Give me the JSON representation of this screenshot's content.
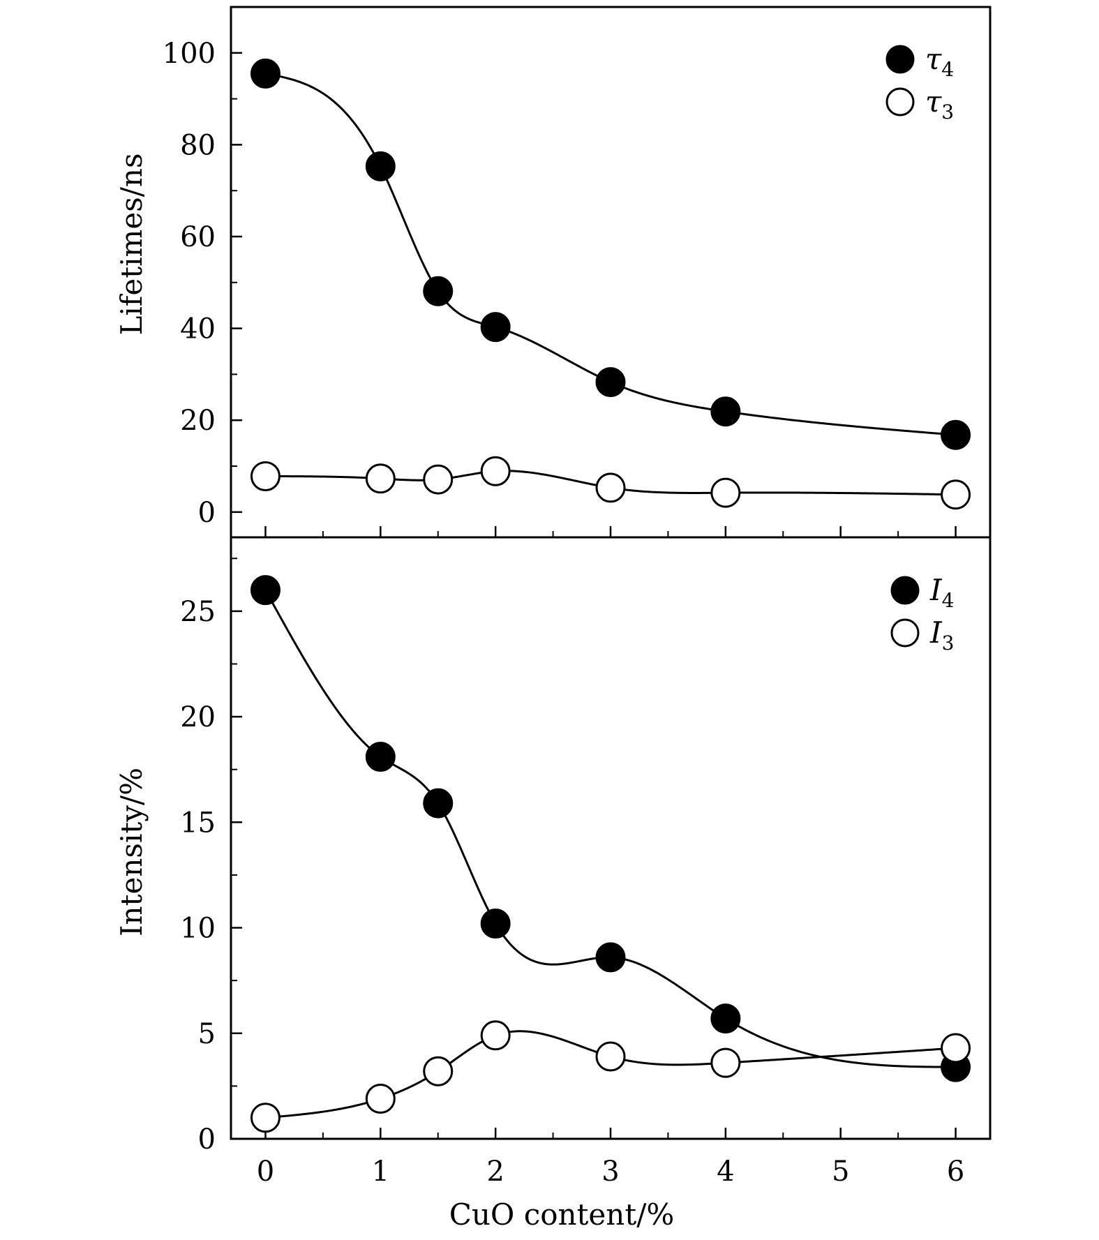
{
  "chart_data": [
    {
      "type": "scatter",
      "panel": "top",
      "ylabel": "Lifetimes/ns",
      "ylim": [
        -5.5,
        110
      ],
      "yticks": [
        0,
        20,
        40,
        60,
        80,
        100
      ],
      "x": [
        0,
        1,
        1.5,
        2,
        3,
        4,
        6
      ],
      "legend_position": "top-right",
      "series": [
        {
          "name": "τ4",
          "label_main": "τ",
          "label_sub": "4",
          "marker": "filled",
          "values": [
            95.5,
            75.3,
            48.1,
            40.3,
            28.3,
            21.9,
            16.8
          ]
        },
        {
          "name": "τ3",
          "label_main": "τ",
          "label_sub": "3",
          "marker": "open",
          "values": [
            7.8,
            7.3,
            7.1,
            8.9,
            5.3,
            4.2,
            3.8
          ]
        }
      ]
    },
    {
      "type": "scatter",
      "panel": "bottom",
      "xlabel": "CuO content/%",
      "ylabel": "Intensity/%",
      "xlim": [
        -0.3,
        6.3
      ],
      "xticks": [
        0,
        1,
        2,
        3,
        4,
        5,
        6
      ],
      "ylim": [
        0,
        28.5
      ],
      "yticks": [
        0,
        5,
        10,
        15,
        20,
        25
      ],
      "x": [
        0,
        1,
        1.5,
        2,
        3,
        4,
        6
      ],
      "legend_position": "top-right",
      "series": [
        {
          "name": "I4",
          "label_main": "I",
          "label_sub": "4",
          "marker": "filled",
          "values": [
            26.0,
            18.1,
            15.9,
            10.2,
            8.6,
            5.7,
            3.4
          ]
        },
        {
          "name": "I3",
          "label_main": "I",
          "label_sub": "3",
          "marker": "open",
          "values": [
            1.0,
            1.9,
            3.2,
            4.9,
            3.9,
            3.6,
            4.3
          ]
        }
      ]
    }
  ]
}
